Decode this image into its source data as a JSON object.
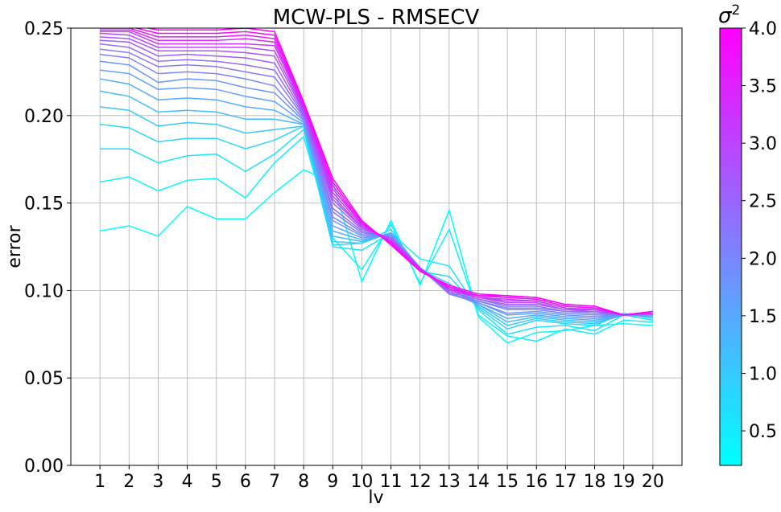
{
  "chart_data": {
    "type": "line",
    "title": "MCW-PLS - RMSECV",
    "xlabel": "lv",
    "ylabel": "error",
    "x": [
      1,
      2,
      3,
      4,
      5,
      6,
      7,
      8,
      9,
      10,
      11,
      12,
      13,
      14,
      15,
      16,
      17,
      18,
      19,
      20
    ],
    "ylim": [
      0,
      0.25
    ],
    "yticks": [
      "0.00",
      "0.05",
      "0.10",
      "0.15",
      "0.20",
      "0.25"
    ],
    "grid": true,
    "colorbar": {
      "label": "σ²",
      "min": 0.2,
      "max": 4.0,
      "ticks": [
        "0.5",
        "1.0",
        "1.5",
        "2.0",
        "2.5",
        "3.0",
        "3.5",
        "4.0"
      ],
      "colormap": "cool",
      "color_low": "#00ffff",
      "color_high": "#ff00ff"
    },
    "series": [
      {
        "sigma2": 0.2,
        "values": [
          0.134,
          0.137,
          0.131,
          0.148,
          0.141,
          0.141,
          0.156,
          0.169,
          0.162,
          0.105,
          0.14,
          0.103,
          0.146,
          0.085,
          0.07,
          0.076,
          0.077,
          0.08,
          0.081,
          0.08
        ]
      },
      {
        "sigma2": 0.4,
        "values": [
          0.162,
          0.165,
          0.157,
          0.163,
          0.164,
          0.153,
          0.173,
          0.188,
          0.13,
          0.112,
          0.138,
          0.104,
          0.135,
          0.086,
          0.074,
          0.071,
          0.078,
          0.075,
          0.083,
          0.082
        ]
      },
      {
        "sigma2": 0.6,
        "values": [
          0.181,
          0.181,
          0.173,
          0.177,
          0.178,
          0.168,
          0.178,
          0.192,
          0.125,
          0.123,
          0.133,
          0.118,
          0.114,
          0.089,
          0.075,
          0.079,
          0.08,
          0.077,
          0.086,
          0.083
        ]
      },
      {
        "sigma2": 0.8,
        "values": [
          0.195,
          0.193,
          0.185,
          0.187,
          0.187,
          0.181,
          0.186,
          0.194,
          0.126,
          0.127,
          0.135,
          0.111,
          0.108,
          0.09,
          0.078,
          0.083,
          0.081,
          0.08,
          0.087,
          0.084
        ]
      },
      {
        "sigma2": 1.0,
        "values": [
          0.205,
          0.203,
          0.194,
          0.196,
          0.195,
          0.19,
          0.192,
          0.194,
          0.128,
          0.127,
          0.133,
          0.112,
          0.104,
          0.091,
          0.08,
          0.084,
          0.082,
          0.081,
          0.086,
          0.085
        ]
      },
      {
        "sigma2": 1.2,
        "values": [
          0.214,
          0.211,
          0.202,
          0.203,
          0.202,
          0.198,
          0.198,
          0.195,
          0.131,
          0.128,
          0.133,
          0.113,
          0.101,
          0.092,
          0.082,
          0.085,
          0.083,
          0.082,
          0.086,
          0.085
        ]
      },
      {
        "sigma2": 1.4,
        "values": [
          0.221,
          0.218,
          0.209,
          0.21,
          0.209,
          0.205,
          0.203,
          0.195,
          0.134,
          0.129,
          0.132,
          0.113,
          0.099,
          0.092,
          0.084,
          0.086,
          0.084,
          0.083,
          0.086,
          0.086
        ]
      },
      {
        "sigma2": 1.6,
        "values": [
          0.226,
          0.224,
          0.215,
          0.216,
          0.215,
          0.211,
          0.208,
          0.196,
          0.137,
          0.13,
          0.132,
          0.113,
          0.098,
          0.093,
          0.086,
          0.087,
          0.085,
          0.084,
          0.086,
          0.086
        ]
      },
      {
        "sigma2": 1.8,
        "values": [
          0.231,
          0.229,
          0.219,
          0.221,
          0.22,
          0.216,
          0.213,
          0.197,
          0.14,
          0.131,
          0.131,
          0.113,
          0.098,
          0.093,
          0.087,
          0.088,
          0.086,
          0.085,
          0.086,
          0.086
        ]
      },
      {
        "sigma2": 2.0,
        "values": [
          0.235,
          0.233,
          0.224,
          0.225,
          0.224,
          0.221,
          0.217,
          0.198,
          0.142,
          0.132,
          0.131,
          0.113,
          0.098,
          0.094,
          0.089,
          0.089,
          0.087,
          0.086,
          0.086,
          0.086
        ]
      },
      {
        "sigma2": 2.2,
        "values": [
          0.238,
          0.236,
          0.228,
          0.229,
          0.228,
          0.225,
          0.222,
          0.199,
          0.145,
          0.133,
          0.131,
          0.113,
          0.098,
          0.094,
          0.09,
          0.09,
          0.088,
          0.087,
          0.086,
          0.087
        ]
      },
      {
        "sigma2": 2.4,
        "values": [
          0.241,
          0.239,
          0.231,
          0.232,
          0.231,
          0.229,
          0.226,
          0.2,
          0.147,
          0.134,
          0.13,
          0.113,
          0.099,
          0.095,
          0.091,
          0.091,
          0.088,
          0.088,
          0.086,
          0.087
        ]
      },
      {
        "sigma2": 2.6,
        "values": [
          0.243,
          0.242,
          0.234,
          0.235,
          0.234,
          0.233,
          0.23,
          0.201,
          0.15,
          0.135,
          0.13,
          0.113,
          0.099,
          0.095,
          0.092,
          0.092,
          0.089,
          0.088,
          0.086,
          0.087
        ]
      },
      {
        "sigma2": 2.8,
        "values": [
          0.245,
          0.244,
          0.237,
          0.237,
          0.237,
          0.236,
          0.234,
          0.202,
          0.152,
          0.136,
          0.129,
          0.113,
          0.1,
          0.096,
          0.093,
          0.093,
          0.089,
          0.089,
          0.086,
          0.087
        ]
      },
      {
        "sigma2": 3.0,
        "values": [
          0.247,
          0.246,
          0.239,
          0.239,
          0.239,
          0.239,
          0.237,
          0.203,
          0.154,
          0.136,
          0.129,
          0.113,
          0.1,
          0.096,
          0.094,
          0.094,
          0.09,
          0.089,
          0.086,
          0.087
        ]
      },
      {
        "sigma2": 3.2,
        "values": [
          0.248,
          0.248,
          0.241,
          0.241,
          0.241,
          0.241,
          0.24,
          0.204,
          0.156,
          0.137,
          0.128,
          0.112,
          0.101,
          0.096,
          0.095,
          0.094,
          0.09,
          0.089,
          0.086,
          0.087
        ]
      },
      {
        "sigma2": 3.4,
        "values": [
          0.249,
          0.249,
          0.243,
          0.243,
          0.243,
          0.244,
          0.242,
          0.205,
          0.158,
          0.138,
          0.128,
          0.112,
          0.101,
          0.097,
          0.096,
          0.095,
          0.091,
          0.09,
          0.086,
          0.087
        ]
      },
      {
        "sigma2": 3.6,
        "values": [
          0.25,
          0.25,
          0.245,
          0.245,
          0.245,
          0.246,
          0.244,
          0.206,
          0.16,
          0.138,
          0.127,
          0.112,
          0.102,
          0.097,
          0.096,
          0.095,
          0.091,
          0.09,
          0.086,
          0.088
        ]
      },
      {
        "sigma2": 3.8,
        "values": [
          0.251,
          0.251,
          0.247,
          0.247,
          0.247,
          0.248,
          0.246,
          0.207,
          0.162,
          0.139,
          0.127,
          0.111,
          0.102,
          0.097,
          0.097,
          0.096,
          0.092,
          0.091,
          0.086,
          0.088
        ]
      },
      {
        "sigma2": 4.0,
        "values": [
          0.252,
          0.252,
          0.249,
          0.249,
          0.249,
          0.25,
          0.248,
          0.208,
          0.164,
          0.14,
          0.126,
          0.111,
          0.103,
          0.098,
          0.097,
          0.096,
          0.092,
          0.091,
          0.086,
          0.088
        ]
      }
    ]
  }
}
